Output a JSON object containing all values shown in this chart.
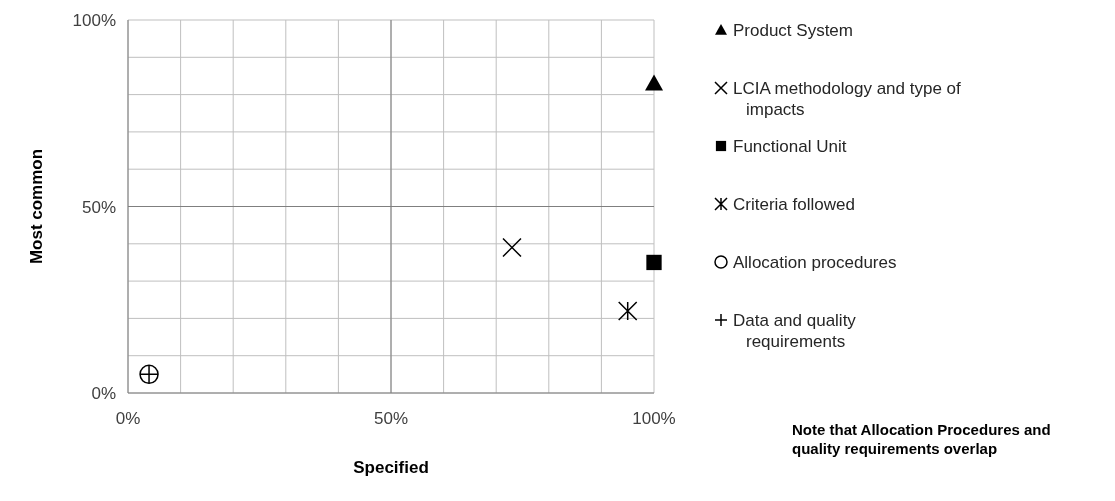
{
  "chart_data": {
    "type": "scatter",
    "xlabel": "Specified",
    "ylabel": "Most common",
    "xlim": [
      0,
      100
    ],
    "ylim": [
      0,
      100
    ],
    "xticks": [
      {
        "value": 0,
        "label": "0%"
      },
      {
        "value": 10,
        "label": null
      },
      {
        "value": 20,
        "label": null
      },
      {
        "value": 30,
        "label": null
      },
      {
        "value": 40,
        "label": null
      },
      {
        "value": 50,
        "label": "50%"
      },
      {
        "value": 60,
        "label": null
      },
      {
        "value": 70,
        "label": null
      },
      {
        "value": 80,
        "label": null
      },
      {
        "value": 90,
        "label": null
      },
      {
        "value": 100,
        "label": "100%"
      }
    ],
    "yticks": [
      {
        "value": 0,
        "label": "0%"
      },
      {
        "value": 10,
        "label": null
      },
      {
        "value": 20,
        "label": null
      },
      {
        "value": 30,
        "label": null
      },
      {
        "value": 40,
        "label": null
      },
      {
        "value": 50,
        "label": "50%"
      },
      {
        "value": 60,
        "label": null
      },
      {
        "value": 70,
        "label": null
      },
      {
        "value": 80,
        "label": null
      },
      {
        "value": 90,
        "label": null
      },
      {
        "value": 100,
        "label": "100%"
      }
    ],
    "grid": true,
    "legend": "right",
    "series": [
      {
        "name": "Product System",
        "color": "#000000",
        "marker": "triangle",
        "x": [
          100
        ],
        "values": [
          83
        ]
      },
      {
        "name": "LCIA methodology and type of impacts",
        "color": "#000000",
        "marker": "x",
        "x": [
          73
        ],
        "values": [
          39
        ]
      },
      {
        "name": "Functional Unit",
        "color": "#000000",
        "marker": "square",
        "x": [
          100
        ],
        "values": [
          35
        ]
      },
      {
        "name": "Criteria followed",
        "color": "#000000",
        "marker": "cross",
        "x": [
          95
        ],
        "values": [
          22
        ]
      },
      {
        "name": "Allocation procedures",
        "color": "#000000",
        "marker": "circle",
        "x": [
          4
        ],
        "values": [
          5
        ]
      },
      {
        "name": "Data and quality requirements",
        "color": "#000000",
        "marker": "plus",
        "x": [
          4
        ],
        "values": [
          5
        ]
      }
    ],
    "annotations": [
      "Note that Allocation Procedures and quality requirements overlap"
    ]
  }
}
